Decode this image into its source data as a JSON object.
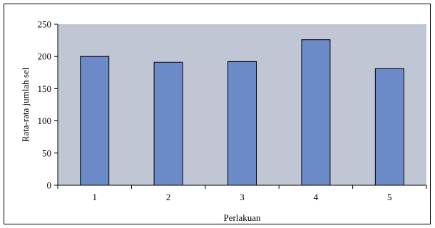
{
  "chart_data": {
    "type": "bar",
    "title": "",
    "xlabel": "Perlakuan",
    "ylabel": "Rata-rata jumlah sel",
    "categories": [
      "1",
      "2",
      "3",
      "4",
      "5"
    ],
    "values": [
      200,
      191,
      192,
      226,
      181
    ],
    "ylim": [
      0,
      250
    ],
    "yticks": [
      0,
      50,
      100,
      150,
      200,
      250
    ],
    "grid": false,
    "legend": "none",
    "colors": {
      "bar_fill": "#6c8ac7",
      "bar_stroke": "#000000",
      "plot_background": "#c0c6d3",
      "axis": "#000000"
    }
  }
}
